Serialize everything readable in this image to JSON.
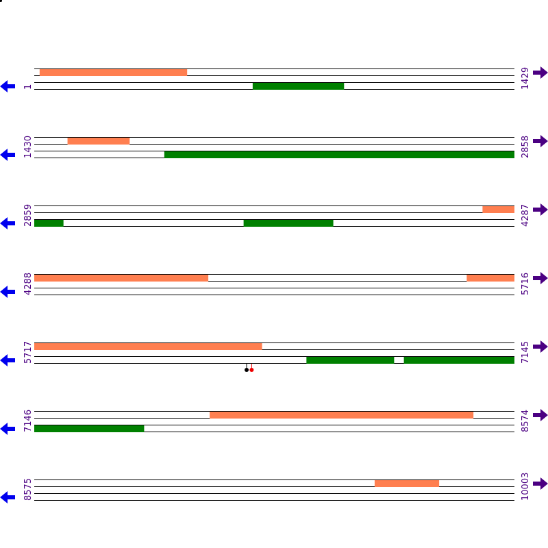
{
  "colors": {
    "orf_forward": "#ff7f50",
    "orf_reverse": "#008000",
    "position_text": "#4b0082",
    "arrow_left": "#0000ee",
    "arrow_right": "#4b0082",
    "line": "#000000",
    "site_a": "#000000",
    "site_b": "#ee0000"
  },
  "icons": {
    "left": "arrow-left-icon",
    "right": "arrow-right-icon"
  },
  "rows": [
    {
      "start": 1,
      "end": 1429,
      "start_label": "1",
      "end_label": "1429",
      "forward": [
        [
          17,
          455
        ]
      ],
      "reverse": [
        [
          651,
          922
        ]
      ]
    },
    {
      "start": 1430,
      "end": 2858,
      "start_label": "1430",
      "end_label": "2858",
      "forward": [
        [
          1529,
          1713
        ]
      ],
      "reverse": [
        [
          1817,
          2858
        ]
      ]
    },
    {
      "start": 2859,
      "end": 4287,
      "start_label": "2859",
      "end_label": "4287",
      "forward": [
        [
          4193,
          4287
        ]
      ],
      "reverse": [
        [
          2859,
          2945
        ],
        [
          3482,
          3748
        ]
      ]
    },
    {
      "start": 4288,
      "end": 5716,
      "start_label": "4288",
      "end_label": "5716",
      "forward": [
        [
          4288,
          4805
        ],
        [
          5575,
          5716
        ]
      ],
      "reverse": []
    },
    {
      "start": 5717,
      "end": 7145,
      "start_label": "5717",
      "end_label": "7145",
      "forward": [
        [
          5717,
          6394
        ]
      ],
      "reverse": [
        [
          6527,
          6787
        ],
        [
          6817,
          7145
        ]
      ],
      "sites": [
        {
          "pos": 6349,
          "color": "#000000"
        },
        {
          "pos": 6364,
          "color": "#ee0000"
        }
      ]
    },
    {
      "start": 7146,
      "end": 8574,
      "start_label": "7146",
      "end_label": "8574",
      "forward": [
        [
          7668,
          8452
        ]
      ],
      "reverse": [
        [
          7146,
          7472
        ]
      ]
    },
    {
      "start": 8575,
      "end": 10003,
      "start_label": "8575",
      "end_label": "10003",
      "forward": [
        [
          9588,
          9779
        ]
      ],
      "reverse": []
    }
  ]
}
